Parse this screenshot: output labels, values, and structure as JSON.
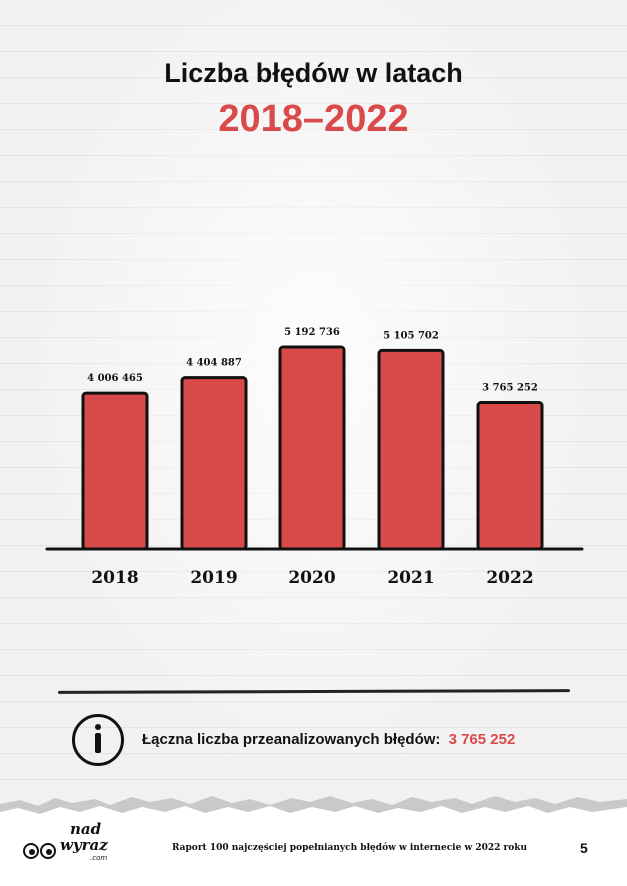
{
  "title": "Liczba błędów w latach",
  "subtitle": "2018–2022",
  "chart_data": {
    "type": "bar",
    "categories": [
      "2018",
      "2019",
      "2020",
      "2021",
      "2022"
    ],
    "values": [
      4006465,
      4404887,
      5192736,
      5105702,
      3765252
    ],
    "value_labels": [
      "4 006 465",
      "4 404 887",
      "5 192 736",
      "5 105 702",
      "3 765 252"
    ],
    "ylim": [
      0,
      5500000
    ],
    "grid": false,
    "legend": "none",
    "bar_color": "#d94a4b",
    "outline_color": "#111111"
  },
  "info": {
    "label": "Łączna liczba przeanalizowanych błędów:",
    "value": "3 765 252",
    "icon": "info-icon"
  },
  "footer": {
    "logo_line1": "nad",
    "logo_line2": "wyraz",
    "logo_line3": ".com",
    "report_text": "Raport 100 najczęściej popełnianych błędów w internecie w 2022 roku",
    "page_number": "5"
  },
  "colors": {
    "accent": "#d94a4b",
    "text": "#111111",
    "background": "#f1f1f1"
  }
}
